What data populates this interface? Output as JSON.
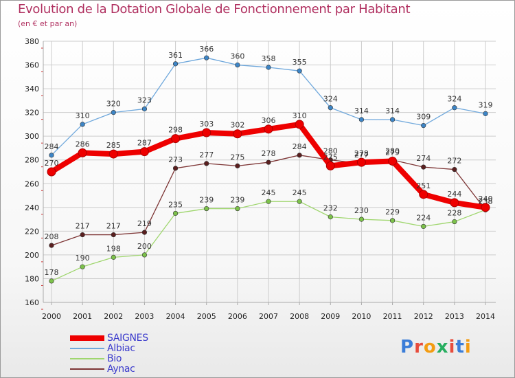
{
  "header": {
    "title": "Evolution de la Dotation Globale de Fonctionnement par Habitant",
    "subtitle": "(en € et par an)"
  },
  "logo": {
    "text": "Proxiti",
    "colors": [
      "#3b7dd8",
      "#e74c3c",
      "#f39c12",
      "#27ae60",
      "#e74c3c",
      "#3b7dd8",
      "#f39c12"
    ]
  },
  "colors": {
    "grid": "#cccccc",
    "axis": "#aaaaaa",
    "tick_marks": "#cc3333"
  },
  "chart_data": {
    "type": "line",
    "title": "Evolution de la Dotation Globale de Fonctionnement par Habitant",
    "ylabel": "(en € et par an)",
    "xlabel": "",
    "ylim": [
      160,
      380
    ],
    "yticks": [
      160,
      180,
      200,
      220,
      240,
      260,
      280,
      300,
      320,
      340,
      360,
      380
    ],
    "grid": true,
    "legend": "bottom-left",
    "categories": [
      "2000",
      "2001",
      "2002",
      "2003",
      "2004",
      "2005",
      "2006",
      "2007",
      "2008",
      "2009",
      "2010",
      "2011",
      "2012",
      "2013",
      "2014"
    ],
    "series": [
      {
        "name": "Albiac",
        "color": "#6fa8dc",
        "marker": "#3d85c6",
        "values": [
          284,
          310,
          320,
          323,
          361,
          366,
          360,
          358,
          355,
          324,
          314,
          314,
          309,
          324,
          319
        ]
      },
      {
        "name": "Bio",
        "color": "#9fd66e",
        "marker": "#7cc24a",
        "values": [
          178,
          190,
          198,
          200,
          235,
          239,
          239,
          245,
          245,
          232,
          230,
          229,
          224,
          228,
          238
        ]
      },
      {
        "name": "Aynac",
        "color": "#7d3535",
        "marker": "#5a1f1f",
        "values": [
          208,
          217,
          217,
          219,
          273,
          277,
          275,
          278,
          284,
          280,
          277,
          280,
          274,
          272,
          238
        ]
      },
      {
        "name": "SAIGNES",
        "color": "#ee0000",
        "marker": "#ee0000",
        "values": [
          270,
          286,
          285,
          287,
          298,
          303,
          302,
          306,
          310,
          275,
          278,
          279,
          251,
          244,
          240
        ]
      }
    ]
  }
}
